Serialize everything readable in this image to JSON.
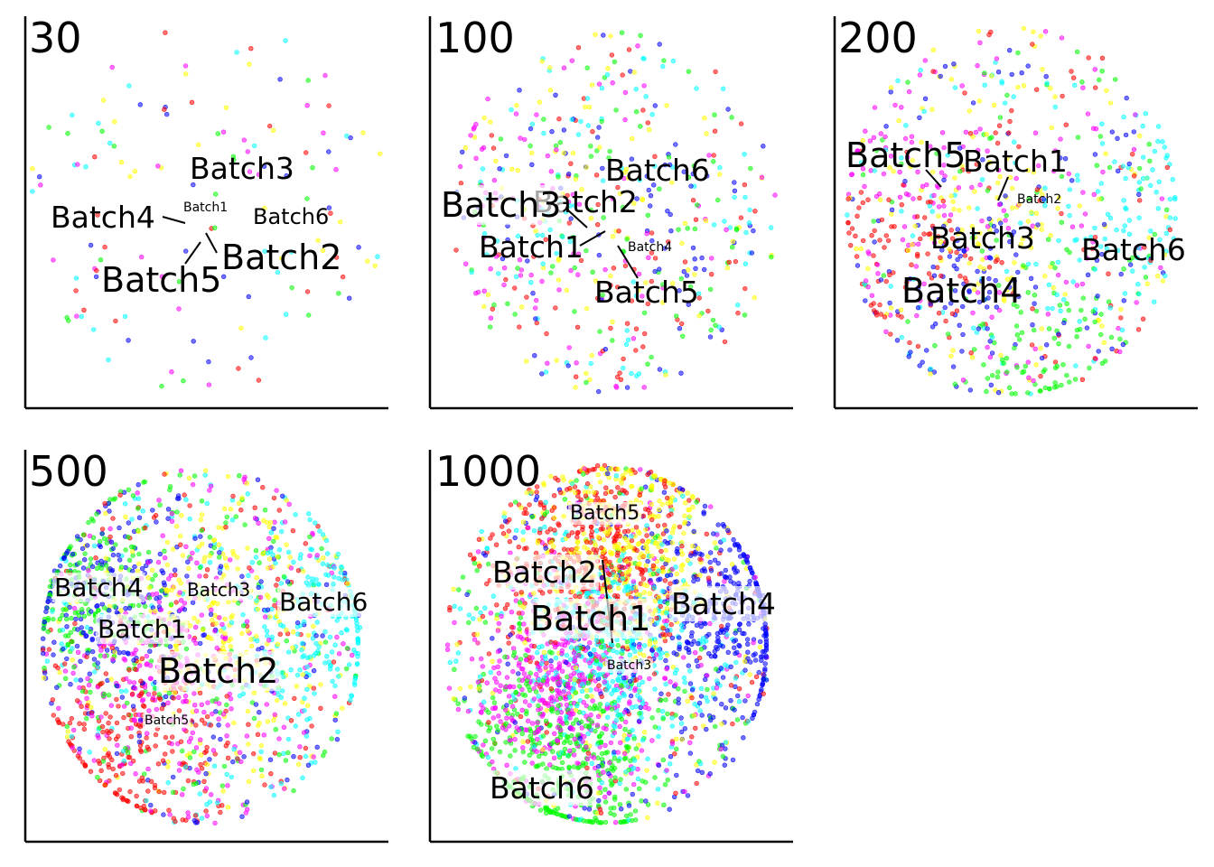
{
  "figure": "Batch effect scatter panels (no axes ticks)",
  "colors": {
    "Batch1": "#ffff00",
    "Batch2": "#ff00ff",
    "Batch3": "#00ffff",
    "Batch4": "#0000ff",
    "Batch5": "#ff0000",
    "Batch6": "#00ff00",
    "axis": "#000000",
    "label_bg": "#ffffff"
  },
  "chart_data": [
    {
      "type": "scatter",
      "title": "30",
      "n_points": 130,
      "series": [
        "Batch1",
        "Batch2",
        "Batch3",
        "Batch4",
        "Batch5",
        "Batch6"
      ],
      "clustering": "none",
      "labels": [
        {
          "text": "Batch3",
          "size": "large"
        },
        {
          "text": "Batch1",
          "size": "tiny"
        },
        {
          "text": "Batch6",
          "size": "medium"
        },
        {
          "text": "Batch4",
          "size": "large"
        },
        {
          "text": "Batch2",
          "size": "xlarge"
        },
        {
          "text": "Batch5",
          "size": "xlarge"
        }
      ]
    },
    {
      "type": "scatter",
      "title": "100",
      "n_points": 520,
      "series": [
        "Batch1",
        "Batch2",
        "Batch3",
        "Batch4",
        "Batch5",
        "Batch6"
      ],
      "clustering": "weak",
      "labels": [
        {
          "text": "Batch6",
          "size": "large"
        },
        {
          "text": "Batch2",
          "size": "large"
        },
        {
          "text": "Batch3",
          "size": "xlarge"
        },
        {
          "text": "Batch1",
          "size": "large"
        },
        {
          "text": "Batch4",
          "size": "tiny"
        },
        {
          "text": "Batch5",
          "size": "large"
        }
      ]
    },
    {
      "type": "scatter",
      "title": "200",
      "n_points": 900,
      "series": [
        "Batch1",
        "Batch2",
        "Batch3",
        "Batch4",
        "Batch5",
        "Batch6"
      ],
      "clustering": "moderate",
      "labels": [
        {
          "text": "Batch5",
          "size": "xlarge"
        },
        {
          "text": "Batch1",
          "size": "large"
        },
        {
          "text": "Batch2",
          "size": "tiny"
        },
        {
          "text": "Batch3",
          "size": "large"
        },
        {
          "text": "Batch6",
          "size": "large"
        },
        {
          "text": "Batch4",
          "size": "xlarge"
        }
      ]
    },
    {
      "type": "scatter",
      "title": "500",
      "n_points": 1900,
      "series": [
        "Batch1",
        "Batch2",
        "Batch3",
        "Batch4",
        "Batch5",
        "Batch6"
      ],
      "clustering": "strong",
      "labels": [
        {
          "text": "Batch4",
          "size": "large"
        },
        {
          "text": "Batch3",
          "size": "small"
        },
        {
          "text": "Batch6",
          "size": "large"
        },
        {
          "text": "Batch1",
          "size": "large"
        },
        {
          "text": "Batch2",
          "size": "xlarge"
        },
        {
          "text": "Batch5",
          "size": "tiny"
        }
      ]
    },
    {
      "type": "scatter",
      "title": "1000",
      "n_points": 3000,
      "series": [
        "Batch1",
        "Batch2",
        "Batch3",
        "Batch4",
        "Batch5",
        "Batch6"
      ],
      "clustering": "very strong",
      "labels": [
        {
          "text": "Batch5",
          "size": "medium"
        },
        {
          "text": "Batch2",
          "size": "large"
        },
        {
          "text": "Batch1",
          "size": "xlarge"
        },
        {
          "text": "Batch4",
          "size": "large"
        },
        {
          "text": "Batch3",
          "size": "tiny"
        },
        {
          "text": "Batch6",
          "size": "large"
        }
      ]
    }
  ]
}
